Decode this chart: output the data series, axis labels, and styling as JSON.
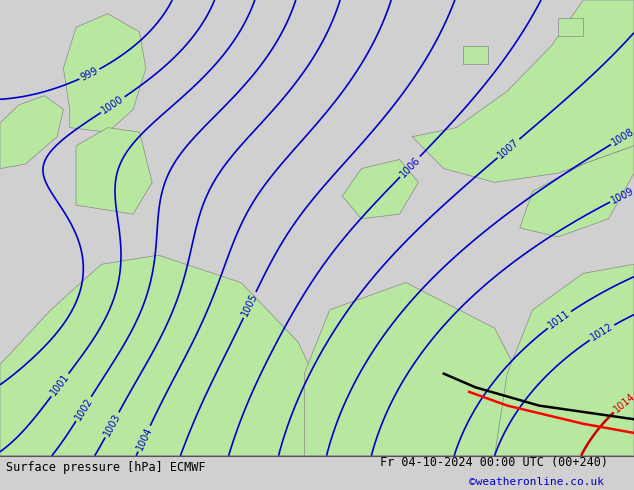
{
  "title_left": "Surface pressure [hPa] ECMWF",
  "title_right": "Fr 04-10-2024 00:00 UTC (00+240)",
  "copyright": "©weatheronline.co.uk",
  "bg_color": "#d0d0d0",
  "land_color": "#b8e8a0",
  "sea_color": "#d0d0d0",
  "contour_color_blue": "#0000cc",
  "contour_color_red": "#cc0000",
  "contour_color_black": "#000000",
  "bottom_bar_color": "#c8c8c8",
  "figsize": [
    6.34,
    4.9
  ],
  "dpi": 100,
  "levels_blue": [
    999,
    1000,
    1001,
    1002,
    1003,
    1004,
    1005,
    1006,
    1007,
    1008,
    1009,
    1011,
    1012
  ],
  "levels_red": [
    1014
  ],
  "levels_black": [
    1014
  ]
}
